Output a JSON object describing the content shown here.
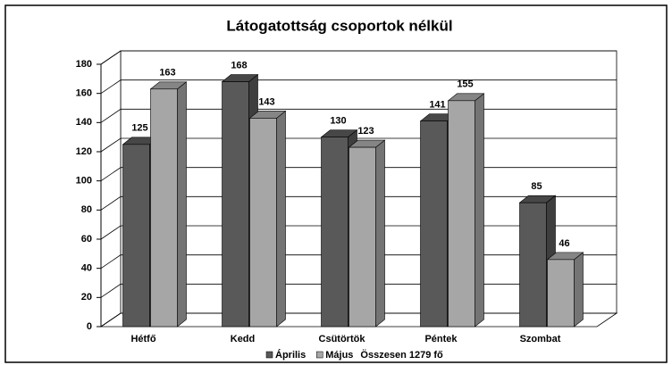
{
  "chart_data": {
    "type": "bar",
    "title": "Látogatottság csoportok nélkül",
    "categories": [
      "Hétfő",
      "Kedd",
      "Csütörtök",
      "Péntek",
      "Szombat"
    ],
    "series": [
      {
        "name": "Április",
        "color": "#595959",
        "values": [
          125,
          168,
          130,
          141,
          85
        ]
      },
      {
        "name": "Május",
        "color": "#a6a6a6",
        "values": [
          163,
          143,
          123,
          155,
          46
        ]
      }
    ],
    "annotation": "Összesen 1279 fő",
    "ylim": [
      0,
      180
    ],
    "yticks": [
      0,
      20,
      40,
      60,
      80,
      100,
      120,
      140,
      160,
      180
    ],
    "grid": true
  }
}
